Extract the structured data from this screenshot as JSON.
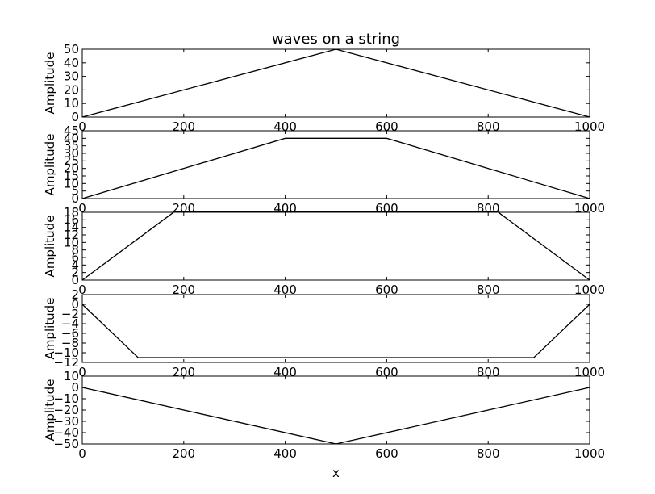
{
  "chart_data": [
    {
      "type": "line",
      "title": "waves on a string",
      "xlabel": "",
      "ylabel": "Amplitude",
      "xlim": [
        0,
        1000
      ],
      "ylim": [
        0,
        50
      ],
      "xticks": [
        0,
        200,
        400,
        600,
        800,
        1000
      ],
      "yticks": [
        0,
        10,
        20,
        30,
        40,
        50
      ],
      "grid": false,
      "series": [
        {
          "color": "#000000",
          "x": [
            0,
            500,
            1000
          ],
          "y": [
            0,
            50,
            0
          ]
        }
      ]
    },
    {
      "type": "line",
      "title": "",
      "xlabel": "",
      "ylabel": "Amplitude",
      "xlim": [
        0,
        1000
      ],
      "ylim": [
        0,
        45
      ],
      "xticks": [
        0,
        200,
        400,
        600,
        800,
        1000
      ],
      "yticks": [
        0,
        5,
        10,
        15,
        20,
        25,
        30,
        35,
        40,
        45
      ],
      "grid": false,
      "series": [
        {
          "color": "#000000",
          "x": [
            0,
            400,
            600,
            1000
          ],
          "y": [
            0,
            40,
            40,
            0
          ]
        }
      ]
    },
    {
      "type": "line",
      "title": "",
      "xlabel": "",
      "ylabel": "Amplitude",
      "xlim": [
        0,
        1000
      ],
      "ylim": [
        0,
        18
      ],
      "xticks": [
        0,
        200,
        400,
        600,
        800,
        1000
      ],
      "yticks": [
        0,
        2,
        4,
        6,
        8,
        10,
        12,
        14,
        16,
        18
      ],
      "grid": false,
      "series": [
        {
          "color": "#000000",
          "x": [
            0,
            182,
            818,
            1000
          ],
          "y": [
            0,
            18.2,
            18.2,
            0
          ]
        }
      ]
    },
    {
      "type": "line",
      "title": "",
      "xlabel": "",
      "ylabel": "Amplitude",
      "xlim": [
        0,
        1000
      ],
      "ylim": [
        -12,
        2
      ],
      "xticks": [
        0,
        200,
        400,
        600,
        800,
        1000
      ],
      "yticks": [
        -12,
        -10,
        -8,
        -6,
        -4,
        -2,
        0,
        2
      ],
      "grid": false,
      "series": [
        {
          "color": "#000000",
          "x": [
            0,
            110,
            890,
            1000
          ],
          "y": [
            0,
            -11,
            -11,
            0
          ]
        }
      ]
    },
    {
      "type": "line",
      "title": "",
      "xlabel": "x",
      "ylabel": "Amplitude",
      "xlim": [
        0,
        1000
      ],
      "ylim": [
        -50,
        10
      ],
      "xticks": [
        0,
        200,
        400,
        600,
        800,
        1000
      ],
      "yticks": [
        -50,
        -40,
        -30,
        -20,
        -10,
        0,
        10
      ],
      "grid": false,
      "series": [
        {
          "color": "#000000",
          "x": [
            0,
            500,
            1000
          ],
          "y": [
            0,
            -50,
            0
          ]
        }
      ]
    }
  ]
}
